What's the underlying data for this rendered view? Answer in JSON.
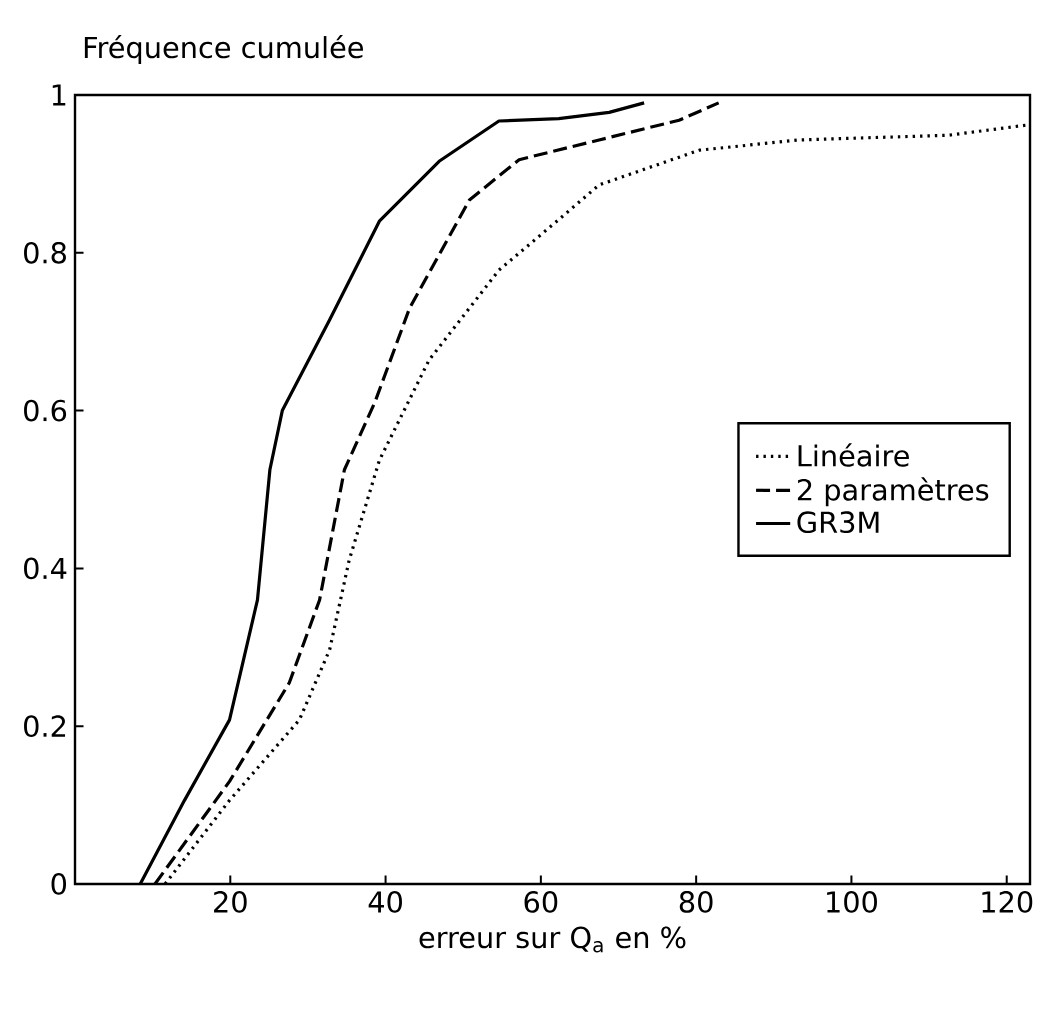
{
  "chart_data": {
    "type": "line",
    "xlabel": "erreur sur Q$_{a}$ en %",
    "ylabel": "Fréquence cumulée",
    "xlim": [
      0,
      123
    ],
    "ylim": [
      0,
      1
    ],
    "xticks": [
      20,
      40,
      60,
      80,
      100,
      120
    ],
    "yticks": [
      0,
      0.2,
      0.4,
      0.6,
      0.8,
      1
    ],
    "legend": "right",
    "series": [
      {
        "name": "Linéaire",
        "color": "#000000",
        "line_style": "dotted",
        "x": [
          11.6,
          19.9,
          28.9,
          32.8,
          35.3,
          39.2,
          45.6,
          54.6,
          62.3,
          67.5,
          80.4,
          93.2,
          112.5,
          122.7
        ],
        "values": [
          0,
          0.106,
          0.208,
          0.297,
          0.41,
          0.537,
          0.664,
          0.778,
          0.842,
          0.886,
          0.93,
          0.943,
          0.949,
          0.962
        ]
      },
      {
        "name": "2 paramètres",
        "color": "#000000",
        "line_style": "dashed",
        "x": [
          10.3,
          19.9,
          27.6,
          31.5,
          34.7,
          38.6,
          43.1,
          50.8,
          57.2,
          67.5,
          77.8,
          82.9
        ],
        "values": [
          0,
          0.13,
          0.255,
          0.36,
          0.525,
          0.61,
          0.73,
          0.867,
          0.918,
          0.943,
          0.968,
          0.99
        ]
      },
      {
        "name": "GR3M",
        "color": "#000000",
        "line_style": "solid",
        "x": [
          8.4,
          14.1,
          19.9,
          23.5,
          25.1,
          26.7,
          32.8,
          39.2,
          46.9,
          54.6,
          62.3,
          68.8,
          73.3
        ],
        "values": [
          0,
          0.106,
          0.208,
          0.36,
          0.525,
          0.6,
          0.715,
          0.84,
          0.916,
          0.967,
          0.97,
          0.978,
          0.99
        ]
      }
    ]
  }
}
